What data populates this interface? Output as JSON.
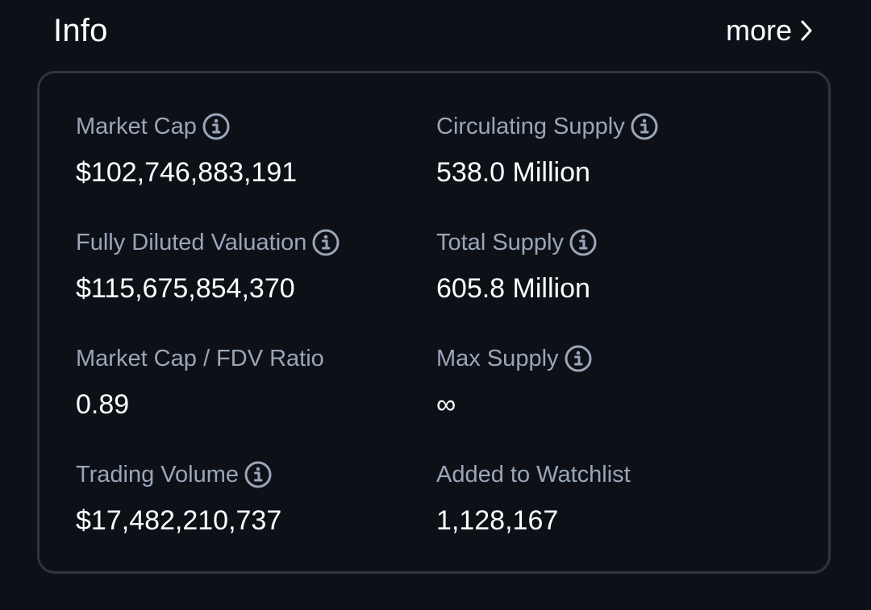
{
  "header": {
    "title": "Info",
    "more_label": "more"
  },
  "stats": {
    "market_cap": {
      "label": "Market Cap",
      "value": "$102,746,883,191",
      "info_icon": "info-circle-icon"
    },
    "circulating_supply": {
      "label": "Circulating Supply",
      "value": "538.0 Million",
      "info_icon": "info-circle-icon"
    },
    "fully_diluted_valuation": {
      "label": "Fully Diluted Valuation",
      "value": "$115,675,854,370",
      "info_icon": "info-circle-icon"
    },
    "total_supply": {
      "label": "Total Supply",
      "value": "605.8 Million",
      "info_icon": "info-circle-icon"
    },
    "mc_fdv_ratio": {
      "label": "Market Cap / FDV Ratio",
      "value": "0.89"
    },
    "max_supply": {
      "label": "Max Supply",
      "value": "∞",
      "info_icon": "info-circle-icon"
    },
    "trading_volume": {
      "label": "Trading Volume",
      "value": "$17,482,210,737",
      "info_icon": "info-circle-icon"
    },
    "added_to_watchlist": {
      "label": "Added to Watchlist",
      "value": "1,128,167"
    }
  },
  "colors": {
    "background": "#0d1117",
    "card_border": "#2d3540",
    "label": "#9aa6b8",
    "value": "#ffffff"
  }
}
